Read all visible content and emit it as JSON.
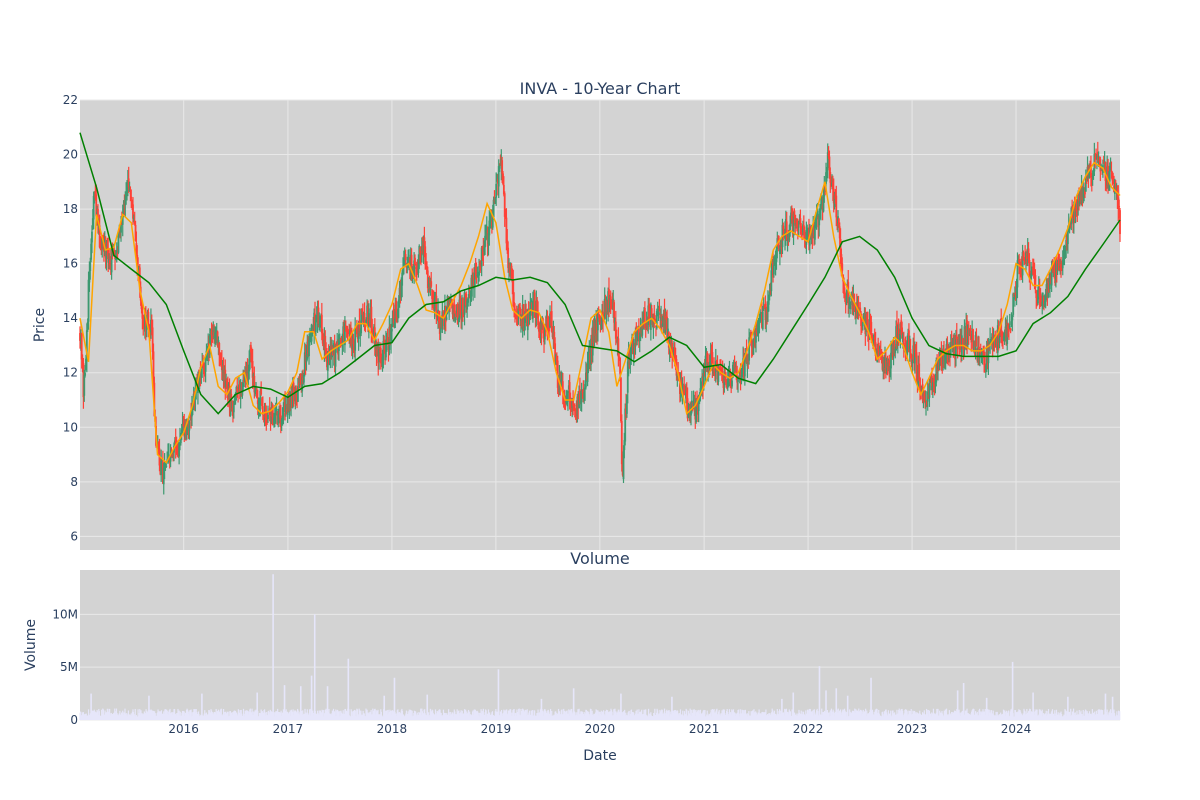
{
  "chart_data": [
    {
      "type": "candlestick",
      "title": "INVA - 10-Year Chart",
      "xlabel": "",
      "ylabel": "Price",
      "ylim": [
        5.5,
        22.0
      ],
      "y_ticks": [
        6,
        8,
        10,
        12,
        14,
        16,
        18,
        20,
        22
      ],
      "x_range": [
        "2015-01-02",
        "2024-12-31"
      ],
      "grid": true,
      "colors": {
        "increasing": "#3d9970",
        "decreasing": "#ff4136",
        "ma_short": "#ffa500",
        "ma_long": "#008000",
        "background": "#d3d3d3",
        "grid": "#e8e8e8"
      },
      "price_keypoints": {
        "x": [
          "2015-01-02",
          "2015-01-15",
          "2015-02-01",
          "2015-02-20",
          "2015-03-10",
          "2015-04-15",
          "2015-05-15",
          "2015-06-15",
          "2015-07-10",
          "2015-08-10",
          "2015-09-10",
          "2015-09-25",
          "2015-10-15",
          "2015-11-15",
          "2015-12-20",
          "2016-01-20",
          "2016-02-20",
          "2016-03-20",
          "2016-04-20",
          "2016-05-20",
          "2016-06-20",
          "2016-07-20",
          "2016-08-20",
          "2016-09-20",
          "2016-10-20",
          "2016-11-20",
          "2016-12-20",
          "2017-01-20",
          "2017-02-20",
          "2017-03-20",
          "2017-04-20",
          "2017-05-20",
          "2017-06-20",
          "2017-07-20",
          "2017-08-20",
          "2017-09-20",
          "2017-10-20",
          "2017-11-20",
          "2017-12-20",
          "2018-01-20",
          "2018-02-20",
          "2018-03-20",
          "2018-04-20",
          "2018-05-20",
          "2018-06-20",
          "2018-07-20",
          "2018-08-20",
          "2018-09-20",
          "2018-10-20",
          "2018-11-20",
          "2018-12-20",
          "2019-01-20",
          "2019-02-15",
          "2019-03-15",
          "2019-04-15",
          "2019-05-15",
          "2019-06-15",
          "2019-07-15",
          "2019-08-10",
          "2019-09-10",
          "2019-10-10",
          "2019-11-10",
          "2019-12-10",
          "2020-01-10",
          "2020-02-10",
          "2020-03-10",
          "2020-03-20",
          "2020-04-10",
          "2020-05-10",
          "2020-06-10",
          "2020-07-10",
          "2020-08-10",
          "2020-09-10",
          "2020-10-10",
          "2020-11-10",
          "2020-12-10",
          "2021-01-10",
          "2021-02-10",
          "2021-03-10",
          "2021-04-10",
          "2021-05-10",
          "2021-06-10",
          "2021-07-10",
          "2021-08-10",
          "2021-09-10",
          "2021-10-10",
          "2021-11-10",
          "2021-12-10",
          "2022-01-10",
          "2022-02-10",
          "2022-03-10",
          "2022-04-10",
          "2022-05-10",
          "2022-06-10",
          "2022-07-10",
          "2022-08-10",
          "2022-09-10",
          "2022-10-10",
          "2022-11-10",
          "2022-12-10",
          "2023-01-10",
          "2023-02-10",
          "2023-03-10",
          "2023-04-10",
          "2023-05-10",
          "2023-06-10",
          "2023-07-10",
          "2023-08-10",
          "2023-09-10",
          "2023-10-10",
          "2023-11-10",
          "2023-12-10",
          "2024-01-10",
          "2024-02-10",
          "2024-03-10",
          "2024-04-10",
          "2024-05-10",
          "2024-06-10",
          "2024-07-10",
          "2024-08-10",
          "2024-09-10",
          "2024-10-10",
          "2024-11-10",
          "2024-12-10",
          "2024-12-31"
        ],
        "close": [
          13.6,
          11.0,
          15.0,
          18.5,
          17.0,
          16.0,
          16.8,
          19.0,
          17.5,
          14.0,
          13.5,
          9.5,
          8.3,
          8.8,
          9.5,
          10.2,
          11.5,
          12.5,
          13.8,
          11.8,
          10.8,
          11.5,
          12.5,
          11.0,
          10.5,
          10.3,
          10.8,
          11.2,
          11.8,
          13.5,
          14.2,
          12.5,
          12.8,
          13.5,
          13.0,
          14.2,
          14.0,
          12.5,
          13.2,
          14.5,
          16.2,
          15.8,
          16.5,
          14.8,
          13.8,
          14.5,
          14.2,
          14.8,
          15.5,
          16.5,
          17.8,
          19.8,
          15.8,
          14.2,
          14.0,
          14.5,
          13.5,
          14.0,
          11.5,
          11.2,
          10.8,
          11.5,
          13.5,
          14.2,
          15.0,
          12.5,
          8.2,
          12.5,
          13.5,
          14.0,
          14.2,
          13.8,
          13.0,
          11.5,
          10.5,
          10.8,
          12.5,
          12.2,
          11.8,
          12.0,
          11.8,
          13.0,
          13.5,
          14.5,
          16.5,
          17.2,
          17.5,
          17.0,
          17.2,
          17.5,
          19.8,
          18.0,
          15.0,
          14.5,
          14.0,
          13.5,
          12.5,
          12.0,
          13.5,
          13.2,
          12.5,
          11.0,
          11.5,
          12.5,
          13.0,
          12.8,
          13.5,
          13.0,
          12.5,
          13.0,
          13.5,
          13.5,
          16.0,
          16.3,
          15.0,
          14.8,
          15.5,
          16.2,
          17.5,
          18.5,
          19.2,
          19.8,
          19.3,
          19.0,
          17.5
        ]
      },
      "series": [
        {
          "name": "",
          "color": "#ffa500",
          "x": [
            "2015-01-02",
            "2015-02-01",
            "2015-03-01",
            "2015-04-01",
            "2015-05-01",
            "2015-06-01",
            "2015-07-01",
            "2015-08-01",
            "2015-09-01",
            "2015-10-01",
            "2015-11-01",
            "2015-12-01",
            "2016-01-01",
            "2016-02-01",
            "2016-03-01",
            "2016-04-01",
            "2016-05-01",
            "2016-06-01",
            "2016-07-01",
            "2016-08-01",
            "2016-09-01",
            "2016-10-01",
            "2016-11-01",
            "2016-12-01",
            "2017-01-01",
            "2017-02-01",
            "2017-03-01",
            "2017-04-01",
            "2017-05-01",
            "2017-06-01",
            "2017-07-01",
            "2017-08-01",
            "2017-09-01",
            "2017-10-01",
            "2017-11-01",
            "2017-12-01",
            "2018-01-01",
            "2018-02-01",
            "2018-03-01",
            "2018-04-01",
            "2018-05-01",
            "2018-06-01",
            "2018-07-01",
            "2018-08-01",
            "2018-09-01",
            "2018-10-01",
            "2018-11-01",
            "2018-12-01",
            "2019-01-01",
            "2019-02-01",
            "2019-03-01",
            "2019-04-01",
            "2019-05-01",
            "2019-06-01",
            "2019-07-01",
            "2019-08-01",
            "2019-09-01",
            "2019-10-01",
            "2019-11-01",
            "2019-12-01",
            "2020-01-01",
            "2020-02-01",
            "2020-03-01",
            "2020-04-01",
            "2020-05-01",
            "2020-06-01",
            "2020-07-01",
            "2020-08-01",
            "2020-09-01",
            "2020-10-01",
            "2020-11-01",
            "2020-12-01",
            "2021-01-01",
            "2021-02-01",
            "2021-03-01",
            "2021-04-01",
            "2021-05-01",
            "2021-06-01",
            "2021-07-01",
            "2021-08-01",
            "2021-09-01",
            "2021-10-01",
            "2021-11-01",
            "2021-12-01",
            "2022-01-01",
            "2022-02-01",
            "2022-03-01",
            "2022-04-01",
            "2022-05-01",
            "2022-06-01",
            "2022-07-01",
            "2022-08-01",
            "2022-09-01",
            "2022-10-01",
            "2022-11-01",
            "2022-12-01",
            "2023-01-01",
            "2023-02-01",
            "2023-03-01",
            "2023-04-01",
            "2023-05-01",
            "2023-06-01",
            "2023-07-01",
            "2023-08-01",
            "2023-09-01",
            "2023-10-01",
            "2023-11-01",
            "2023-12-01",
            "2024-01-01",
            "2024-02-01",
            "2024-03-01",
            "2024-04-01",
            "2024-05-01",
            "2024-06-01",
            "2024-07-01",
            "2024-08-01",
            "2024-09-01",
            "2024-10-01",
            "2024-11-01",
            "2024-12-01",
            "2024-12-31"
          ],
          "values": [
            14.0,
            12.4,
            17.8,
            16.5,
            16.6,
            17.8,
            17.5,
            15.0,
            13.5,
            9.0,
            8.7,
            9.3,
            9.8,
            10.8,
            12.2,
            13.0,
            11.5,
            11.2,
            11.8,
            12.0,
            10.8,
            10.5,
            10.6,
            10.9,
            11.3,
            12.0,
            13.5,
            13.5,
            12.5,
            12.8,
            13.0,
            13.2,
            13.8,
            13.8,
            13.2,
            13.8,
            14.5,
            15.8,
            16.0,
            15.2,
            14.3,
            14.2,
            14.0,
            14.6,
            15.2,
            16.0,
            17.0,
            18.2,
            17.5,
            15.5,
            14.3,
            14.0,
            14.3,
            14.2,
            13.5,
            12.0,
            11.0,
            11.0,
            12.5,
            14.0,
            14.3,
            13.5,
            11.5,
            12.5,
            13.5,
            13.8,
            14.0,
            13.6,
            13.0,
            12.0,
            10.5,
            10.8,
            11.5,
            12.3,
            12.0,
            11.8,
            12.0,
            12.8,
            13.8,
            15.0,
            16.5,
            17.0,
            17.2,
            17.0,
            16.8,
            18.0,
            19.0,
            17.0,
            15.5,
            14.8,
            14.2,
            13.5,
            12.5,
            12.8,
            13.3,
            13.0,
            12.0,
            11.2,
            11.8,
            12.5,
            12.8,
            13.0,
            13.0,
            12.8,
            12.8,
            13.0,
            13.5,
            14.5,
            16.0,
            15.8,
            15.2,
            15.2,
            15.8,
            16.5,
            17.3,
            18.5,
            19.2,
            19.7,
            19.5,
            18.8,
            18.5
          ]
        },
        {
          "name": "",
          "color": "#008000",
          "x": [
            "2015-01-02",
            "2015-03-01",
            "2015-05-01",
            "2015-07-01",
            "2015-09-01",
            "2015-11-01",
            "2016-01-01",
            "2016-03-01",
            "2016-05-01",
            "2016-07-01",
            "2016-09-01",
            "2016-11-01",
            "2017-01-01",
            "2017-03-01",
            "2017-05-01",
            "2017-07-01",
            "2017-09-01",
            "2017-11-01",
            "2018-01-01",
            "2018-03-01",
            "2018-05-01",
            "2018-07-01",
            "2018-09-01",
            "2018-11-01",
            "2019-01-01",
            "2019-03-01",
            "2019-05-01",
            "2019-07-01",
            "2019-09-01",
            "2019-11-01",
            "2020-01-01",
            "2020-03-01",
            "2020-05-01",
            "2020-07-01",
            "2020-09-01",
            "2020-11-01",
            "2021-01-01",
            "2021-03-01",
            "2021-05-01",
            "2021-07-01",
            "2021-09-01",
            "2021-11-01",
            "2022-01-01",
            "2022-03-01",
            "2022-05-01",
            "2022-07-01",
            "2022-09-01",
            "2022-11-01",
            "2023-01-01",
            "2023-03-01",
            "2023-05-01",
            "2023-07-01",
            "2023-09-01",
            "2023-11-01",
            "2024-01-01",
            "2024-03-01",
            "2024-05-01",
            "2024-07-01",
            "2024-09-01",
            "2024-11-01",
            "2024-12-31"
          ],
          "values": [
            20.8,
            18.8,
            16.3,
            15.8,
            15.3,
            14.5,
            12.8,
            11.2,
            10.5,
            11.2,
            11.5,
            11.4,
            11.1,
            11.5,
            11.6,
            12.0,
            12.5,
            13.0,
            13.1,
            14.0,
            14.5,
            14.6,
            15.0,
            15.2,
            15.5,
            15.4,
            15.5,
            15.3,
            14.5,
            13.0,
            12.9,
            12.8,
            12.4,
            12.8,
            13.3,
            13.0,
            12.2,
            12.3,
            11.8,
            11.6,
            12.5,
            13.5,
            14.5,
            15.5,
            16.8,
            17.0,
            16.5,
            15.5,
            14.0,
            13.0,
            12.7,
            12.6,
            12.6,
            12.6,
            12.8,
            13.8,
            14.2,
            14.8,
            15.8,
            16.7,
            17.6
          ]
        }
      ]
    },
    {
      "type": "bar",
      "title": "Volume",
      "xlabel": "Date",
      "ylabel": "Volume",
      "ylim": [
        0,
        14200000
      ],
      "y_ticks": [
        0,
        5000000,
        10000000
      ],
      "y_tick_labels": [
        "0",
        "5M",
        "10M"
      ],
      "x_ticks": [
        "2016-01-01",
        "2017-01-01",
        "2018-01-01",
        "2019-01-01",
        "2020-01-01",
        "2021-01-01",
        "2022-01-01",
        "2023-01-01",
        "2024-01-01"
      ],
      "x_tick_labels": [
        "2016",
        "2017",
        "2018",
        "2019",
        "2020",
        "2021",
        "2022",
        "2023",
        "2024"
      ],
      "bar_color": "#e6e6fa",
      "typical_volume": 700000,
      "spikes": {
        "x": [
          "2015-02-10",
          "2015-09-01",
          "2016-03-05",
          "2016-09-15",
          "2016-11-10",
          "2016-12-20",
          "2017-02-15",
          "2017-03-25",
          "2017-04-05",
          "2017-05-20",
          "2017-08-01",
          "2017-12-05",
          "2018-01-10",
          "2018-05-05",
          "2019-01-10",
          "2019-06-10",
          "2019-10-01",
          "2020-03-15",
          "2020-09-10",
          "2021-10-01",
          "2021-11-10",
          "2022-02-10",
          "2022-03-05",
          "2022-04-10",
          "2022-05-20",
          "2022-08-10",
          "2023-06-10",
          "2023-07-01",
          "2023-09-20",
          "2023-12-20",
          "2024-03-01",
          "2024-07-01",
          "2024-11-10",
          "2024-12-05"
        ],
        "values": [
          2500000,
          2300000,
          2500000,
          2600000,
          13800000,
          3300000,
          3200000,
          4200000,
          10000000,
          3200000,
          5800000,
          2300000,
          4000000,
          2400000,
          4800000,
          2000000,
          3000000,
          2500000,
          2200000,
          2000000,
          2600000,
          5100000,
          2800000,
          3000000,
          2300000,
          4000000,
          2800000,
          3500000,
          2100000,
          5500000,
          2600000,
          2200000,
          2500000,
          2200000
        ]
      }
    }
  ]
}
